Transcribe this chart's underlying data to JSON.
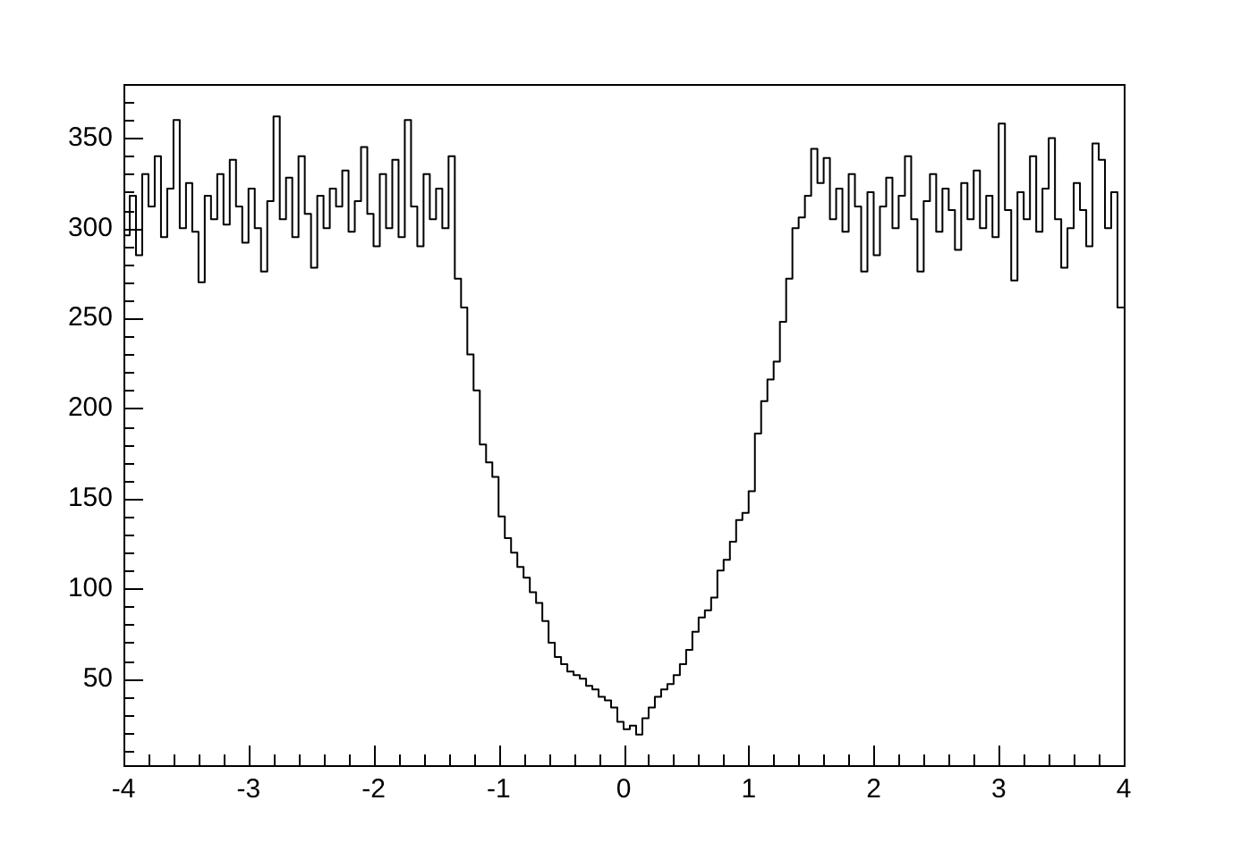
{
  "chart_data": {
    "type": "histogram",
    "color": "#000000",
    "bins": [
      -4,
      -3.95,
      -3.9,
      -3.85,
      -3.8,
      -3.75,
      -3.7,
      -3.65,
      -3.6,
      -3.55,
      -3.5,
      -3.45,
      -3.4,
      -3.35,
      -3.3,
      -3.25,
      -3.2,
      -3.15,
      -3.1,
      -3.05,
      -3,
      -2.95,
      -2.9,
      -2.85,
      -2.8,
      -2.75,
      -2.7,
      -2.65,
      -2.6,
      -2.55,
      -2.5,
      -2.45,
      -2.4,
      -2.35,
      -2.3,
      -2.25,
      -2.2,
      -2.15,
      -2.1,
      -2.05,
      -2,
      -1.95,
      -1.9,
      -1.85,
      -1.8,
      -1.75,
      -1.7,
      -1.65,
      -1.6,
      -1.55,
      -1.5,
      -1.45,
      -1.4,
      -1.35,
      -1.3,
      -1.25,
      -1.2,
      -1.15,
      -1.1,
      -1.05,
      -1,
      -0.95,
      -0.9,
      -0.85,
      -0.8,
      -0.75,
      -0.7,
      -0.65,
      -0.6,
      -0.55,
      -0.5,
      -0.45,
      -0.4,
      -0.35,
      -0.3,
      -0.25,
      -0.2,
      -0.15,
      -0.1,
      -0.05,
      0,
      0.05,
      0.1,
      0.15,
      0.2,
      0.25,
      0.3,
      0.35,
      0.4,
      0.45,
      0.5,
      0.55,
      0.6,
      0.65,
      0.7,
      0.75,
      0.8,
      0.85,
      0.9,
      0.95,
      1,
      1.05,
      1.1,
      1.15,
      1.2,
      1.25,
      1.3,
      1.35,
      1.4,
      1.45,
      1.5,
      1.55,
      1.6,
      1.65,
      1.7,
      1.75,
      1.8,
      1.85,
      1.9,
      1.95,
      2,
      2.05,
      2.1,
      2.15,
      2.2,
      2.25,
      2.3,
      2.35,
      2.4,
      2.45,
      2.5,
      2.55,
      2.6,
      2.65,
      2.7,
      2.75,
      2.8,
      2.85,
      2.9,
      2.95,
      3,
      3.05,
      3.1,
      3.15,
      3.2,
      3.25,
      3.3,
      3.35,
      3.4,
      3.45,
      3.5,
      3.55,
      3.6,
      3.65,
      3.7,
      3.75,
      3.8,
      3.85,
      3.9,
      3.95,
      4
    ],
    "values": [
      296,
      318,
      285,
      330,
      312,
      340,
      295,
      322,
      360,
      300,
      325,
      298,
      270,
      318,
      305,
      330,
      302,
      338,
      312,
      292,
      322,
      300,
      276,
      315,
      362,
      305,
      328,
      295,
      340,
      308,
      278,
      318,
      300,
      322,
      312,
      332,
      298,
      315,
      345,
      308,
      290,
      330,
      300,
      338,
      295,
      360,
      312,
      290,
      330,
      305,
      322,
      300,
      340,
      272,
      256,
      230,
      210,
      180,
      170,
      162,
      140,
      128,
      120,
      112,
      106,
      98,
      92,
      82,
      70,
      62,
      58,
      54,
      52,
      50,
      46,
      44,
      40,
      38,
      34,
      26,
      22,
      24,
      19,
      28,
      34,
      40,
      44,
      47,
      52,
      58,
      66,
      76,
      84,
      88,
      95,
      110,
      116,
      126,
      138,
      142,
      154,
      186,
      204,
      216,
      226,
      248,
      272,
      300,
      306,
      318,
      344,
      325,
      339,
      305,
      322,
      298,
      330,
      312,
      276,
      320,
      285,
      312,
      328,
      300,
      318,
      340,
      305,
      276,
      315,
      330,
      298,
      322,
      310,
      288,
      325,
      305,
      332,
      300,
      318,
      295,
      358,
      310,
      271,
      320,
      305,
      340,
      298,
      322,
      350,
      305,
      278,
      300,
      325,
      310,
      290,
      347,
      338,
      300,
      320,
      256
    ],
    "xlim": [
      -4,
      4
    ],
    "xticks": [
      -4,
      {
        "value": -3.8,
        "label": null
      },
      {
        "value": -3.6,
        "label": null
      },
      {
        "value": -3.4,
        "label": null
      },
      {
        "value": -3.2,
        "label": null
      },
      -3,
      {
        "value": -2.8,
        "label": null
      },
      {
        "value": -2.6,
        "label": null
      },
      {
        "value": -2.4,
        "label": null
      },
      {
        "value": -2.2,
        "label": null
      },
      -2,
      {
        "value": -1.8,
        "label": null
      },
      {
        "value": -1.6,
        "label": null
      },
      {
        "value": -1.4,
        "label": null
      },
      {
        "value": -1.2,
        "label": null
      },
      -1,
      {
        "value": -0.8,
        "label": null
      },
      {
        "value": -0.6,
        "label": null
      },
      {
        "value": -0.4,
        "label": null
      },
      {
        "value": -0.2,
        "label": null
      },
      0,
      {
        "value": 0.2,
        "label": null
      },
      {
        "value": 0.4,
        "label": null
      },
      {
        "value": 0.6,
        "label": null
      },
      {
        "value": 0.8,
        "label": null
      },
      1,
      {
        "value": 1.2,
        "label": null
      },
      {
        "value": 1.4,
        "label": null
      },
      {
        "value": 1.6,
        "label": null
      },
      {
        "value": 1.8,
        "label": null
      },
      2,
      {
        "value": 2.2,
        "label": null
      },
      {
        "value": 2.4,
        "label": null
      },
      {
        "value": 2.6,
        "label": null
      },
      {
        "value": 2.8,
        "label": null
      },
      3,
      {
        "value": 3.2,
        "label": null
      },
      {
        "value": 3.4,
        "label": null
      },
      {
        "value": 3.6,
        "label": null
      },
      {
        "value": 3.8,
        "label": null
      },
      4
    ],
    "ylim": [
      2,
      380
    ],
    "yticks": [
      {
        "value": 10,
        "label": null
      },
      {
        "value": 20,
        "label": null
      },
      {
        "value": 30,
        "label": null
      },
      {
        "value": 40,
        "label": null
      },
      50,
      {
        "value": 60,
        "label": null
      },
      {
        "value": 70,
        "label": null
      },
      {
        "value": 80,
        "label": null
      },
      {
        "value": 90,
        "label": null
      },
      100,
      {
        "value": 110,
        "label": null
      },
      {
        "value": 120,
        "label": null
      },
      {
        "value": 130,
        "label": null
      },
      {
        "value": 140,
        "label": null
      },
      150,
      {
        "value": 160,
        "label": null
      },
      {
        "value": 170,
        "label": null
      },
      {
        "value": 180,
        "label": null
      },
      {
        "value": 190,
        "label": null
      },
      200,
      {
        "value": 210,
        "label": null
      },
      {
        "value": 220,
        "label": null
      },
      {
        "value": 230,
        "label": null
      },
      {
        "value": 240,
        "label": null
      },
      250,
      {
        "value": 260,
        "label": null
      },
      {
        "value": 270,
        "label": null
      },
      {
        "value": 280,
        "label": null
      },
      {
        "value": 290,
        "label": null
      },
      300,
      {
        "value": 310,
        "label": null
      },
      {
        "value": 320,
        "label": null
      },
      {
        "value": 330,
        "label": null
      },
      {
        "value": 340,
        "label": null
      },
      350,
      {
        "value": 360,
        "label": null
      },
      {
        "value": 370,
        "label": null
      }
    ]
  }
}
